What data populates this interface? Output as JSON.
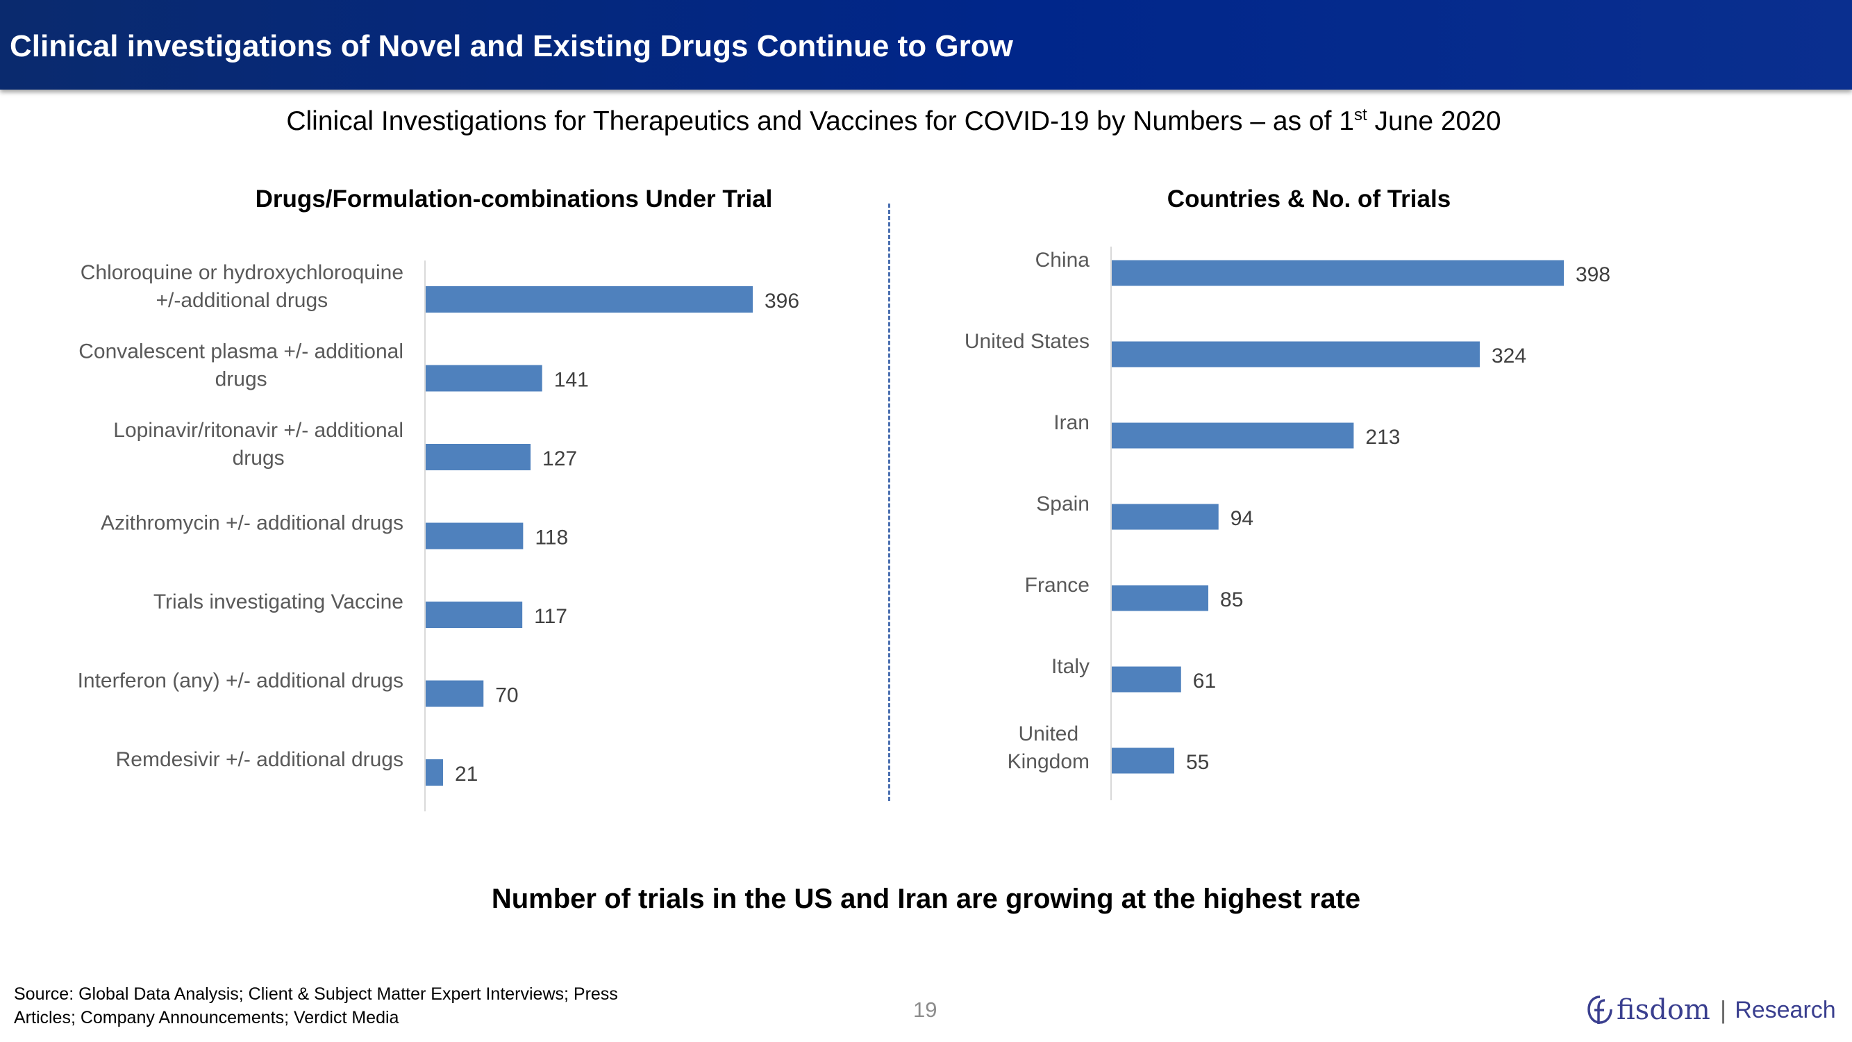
{
  "header": {
    "title": "Clinical investigations of Novel and Existing Drugs Continue to Grow"
  },
  "subtitle": {
    "prefix": "Clinical Investigations for Therapeutics and Vaccines for COVID-19 by Numbers – as of 1",
    "superscript": "st",
    "suffix": " June 2020"
  },
  "insight": "Number of trials in the US and Iran are growing at the highest rate",
  "source": {
    "line1": "Source: Global Data Analysis; Client & Subject Matter Expert Interviews; Press",
    "line2": "Articles; Company Announcements; Verdict Media"
  },
  "page_number": "19",
  "logo": {
    "brand": "fisdom",
    "separator": "|",
    "sub": "Research"
  },
  "colors": {
    "bar": "#4f81bd",
    "header": "#00268a",
    "label": "#595959",
    "axis": "#d9d9d9"
  },
  "chart_data": [
    {
      "type": "bar",
      "orientation": "horizontal",
      "title": "Drugs/Formulation-combinations Under Trial",
      "categories": [
        [
          "Chloroquine or hydroxychloroquine",
          "+/-additional drugs"
        ],
        [
          "Convalescent plasma +/- additional",
          "drugs"
        ],
        [
          "Lopinavir/ritonavir +/- additional",
          "drugs"
        ],
        [
          "Azithromycin +/- additional drugs"
        ],
        [
          "Trials investigating Vaccine"
        ],
        [
          "Interferon (any) +/- additional drugs"
        ],
        [
          "Remdesivir +/- additional drugs"
        ]
      ],
      "values": [
        396,
        141,
        127,
        118,
        117,
        70,
        21
      ],
      "xlim": [
        0,
        396
      ],
      "grid": false
    },
    {
      "type": "bar",
      "orientation": "horizontal",
      "title": "Countries & No. of Trials",
      "categories": [
        [
          "China"
        ],
        [
          "United States"
        ],
        [
          "Iran"
        ],
        [
          "Spain"
        ],
        [
          "France"
        ],
        [
          "Italy"
        ],
        [
          "United",
          "Kingdom"
        ]
      ],
      "values": [
        398,
        324,
        213,
        94,
        85,
        61,
        55
      ],
      "xlim": [
        0,
        398
      ],
      "grid": false
    }
  ]
}
